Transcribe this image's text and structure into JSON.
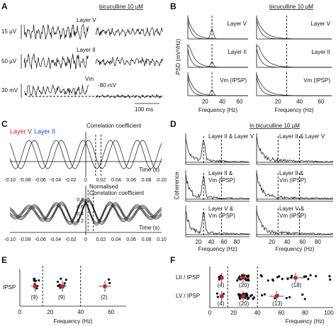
{
  "panels": {
    "A": {
      "label": "A",
      "condition": "bicuculline 10 µM",
      "traces": [
        {
          "scale": "15 µV",
          "name": "Layer V"
        },
        {
          "scale": "50 µV",
          "name": "Layer II"
        },
        {
          "scale": "30 mV",
          "name": "Vm",
          "extra": "-80 mV"
        }
      ],
      "time_scale": "100 ms"
    },
    "B": {
      "label": "B",
      "condition": "bicuculline 10 µM",
      "y_label": "PSD (mV²/Hz)",
      "x_label": "Frequency (Hz)",
      "x_ticks": [
        "20",
        "40",
        "60"
      ],
      "rows": [
        "Layer V",
        "Layer II",
        "Vm (IPSP)"
      ]
    },
    "C": {
      "label": "C",
      "legend": [
        "Layer V",
        "Layer II"
      ],
      "top_title": "Correlation coefficient",
      "bottom_title": [
        "Normalised",
        "Correlation coefficient"
      ],
      "x_label": "Time (s)",
      "x_ticks": [
        "-0.10",
        "-0.08",
        "-0.06",
        "-0.04",
        "-0.02",
        "0",
        "0.02",
        "0.04",
        "0.06",
        "0.08",
        "0.10"
      ],
      "y_ticks": [
        "0.8",
        "0.6",
        "0.4",
        "0.2"
      ]
    },
    "D": {
      "label": "D",
      "condition": "In bicuculline 10 µM",
      "y_label": "Coherence",
      "x_label": "Frequency (Hz)",
      "x_ticks": [
        "20",
        "40",
        "60",
        "80"
      ],
      "rows": [
        [
          "Layer II & Layer V"
        ],
        [
          "Layer II &",
          "Vm (IPSP)"
        ],
        [
          "Layer V &",
          "Vm (IPSP)"
        ]
      ]
    },
    "E": {
      "label": "E",
      "row": "IPSP",
      "counts": [
        "(9)",
        "(9)",
        "(2)"
      ],
      "x_ticks": [
        "0",
        "20",
        "40",
        "60"
      ],
      "x_label": "Frequency (Hz)"
    },
    "F": {
      "label": "F",
      "rows": [
        "LII / IPSP",
        "LV / IPSP"
      ],
      "counts": [
        [
          "(4)",
          "(20)",
          "(18)"
        ],
        [
          "(4)",
          "(20)",
          "(13)"
        ]
      ],
      "x_ticks": [
        "0",
        "20",
        "40",
        "60",
        "80",
        "100"
      ],
      "x_label": "Frequency (Hz)"
    }
  }
}
